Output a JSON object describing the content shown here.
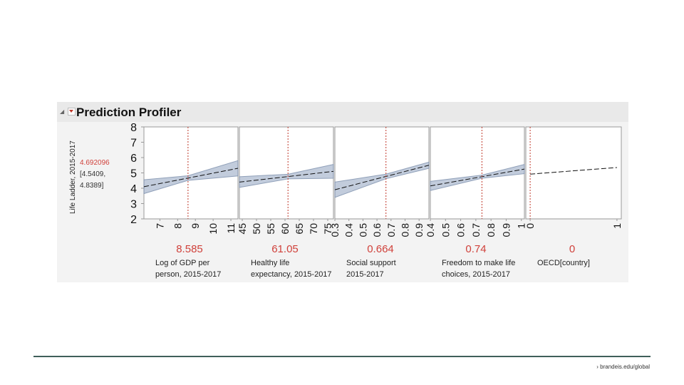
{
  "profiler": {
    "title": "Prediction Profiler"
  },
  "footer": {
    "link": "› brandeis.edu/global"
  },
  "colors": {
    "ref_line": "#c0392b",
    "value_text": "#d0413b",
    "band_fill": "#b8c4d6",
    "band_stroke": "#7d90ad"
  },
  "chart_data": {
    "type": "line",
    "title": "Prediction Profiler",
    "y": {
      "label": "Life Ladder, 2015-2017",
      "range": [
        2,
        8
      ],
      "ticks": [
        "2",
        "3",
        "4",
        "5",
        "6",
        "7",
        "8"
      ],
      "current_value": "4.692096",
      "interval_low": "[4.5409,",
      "interval_high": "4.8389]"
    },
    "panels": [
      {
        "label_line1": "Log of GDP per",
        "label_line2": "person, 2015-2017",
        "current": "8.585",
        "current_num": 8.585,
        "xrange": [
          6.1,
          11.4
        ],
        "ticks": [
          "7",
          "8",
          "9",
          "10",
          "11"
        ],
        "tick_values": [
          7,
          8,
          9,
          10,
          11
        ],
        "line": {
          "x": [
            6.1,
            11.4
          ],
          "y": [
            4.1,
            5.3
          ]
        },
        "band_halfwidth": {
          "left": 0.45,
          "center": 0.15,
          "right": 0.5
        }
      },
      {
        "label_line1": "Healthy life",
        "label_line2": "expectancy, 2015-2017",
        "current": "61.05",
        "current_num": 61.05,
        "xrange": [
          44,
          77
        ],
        "ticks": [
          "45",
          "50",
          "55",
          "60",
          "65",
          "70",
          "75"
        ],
        "tick_values": [
          45,
          50,
          55,
          60,
          65,
          70,
          75
        ],
        "line": {
          "x": [
            44,
            77
          ],
          "y": [
            4.4,
            5.1
          ]
        },
        "band_halfwidth": {
          "left": 0.35,
          "center": 0.15,
          "right": 0.45
        }
      },
      {
        "label_line1": "Social support",
        "label_line2": "2015-2017",
        "current": "0.664",
        "current_num": 0.664,
        "xrange": [
          0.3,
          0.97
        ],
        "ticks": [
          "0.3",
          "0.4",
          "0.5",
          "0.6",
          "0.7",
          "0.8",
          "0.9"
        ],
        "tick_values": [
          0.3,
          0.4,
          0.5,
          0.6,
          0.7,
          0.8,
          0.9
        ],
        "line": {
          "x": [
            0.3,
            0.97
          ],
          "y": [
            3.9,
            5.5
          ]
        },
        "band_halfwidth": {
          "left": 0.5,
          "center": 0.15,
          "right": 0.2
        }
      },
      {
        "label_line1": "Freedom to make life",
        "label_line2": "choices, 2015-2017",
        "current": "0.74",
        "current_num": 0.74,
        "xrange": [
          0.4,
          1.02
        ],
        "ticks": [
          "0.4",
          "0.5",
          "0.6",
          "0.7",
          "0.8",
          "0.9",
          "1"
        ],
        "tick_values": [
          0.4,
          0.5,
          0.6,
          0.7,
          0.8,
          0.9,
          1
        ],
        "line": {
          "x": [
            0.4,
            1.02
          ],
          "y": [
            4.15,
            5.25
          ]
        },
        "band_halfwidth": {
          "left": 0.3,
          "center": 0.1,
          "right": 0.3
        }
      },
      {
        "label_line1": "OECD[country]",
        "label_line2": "",
        "current": "0",
        "current_num": 0,
        "xrange": [
          -0.05,
          1.05
        ],
        "ticks": [
          "0",
          "1"
        ],
        "tick_values": [
          0,
          1
        ],
        "line": {
          "x": [
            0,
            1
          ],
          "y": [
            4.92,
            5.35
          ]
        },
        "band_halfwidth": {
          "left": 0.0,
          "center": 0.0,
          "right": 0.0
        }
      }
    ]
  }
}
